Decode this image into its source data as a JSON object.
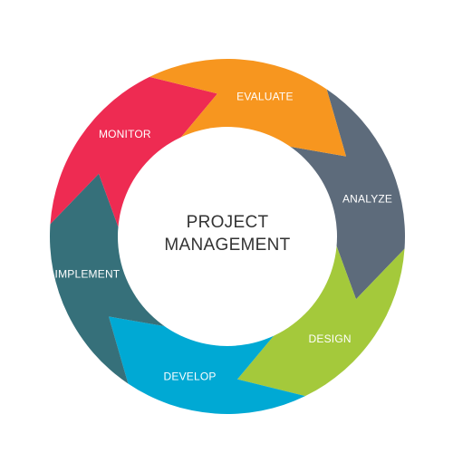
{
  "diagram": {
    "center_lines": [
      "PROJECT",
      "MANAGEMENT"
    ],
    "segments": [
      {
        "label": "ANALYZE",
        "color": "#5d6b7b"
      },
      {
        "label": "DESIGN",
        "color": "#a4c93b"
      },
      {
        "label": "DEVELOP",
        "color": "#00a9d4"
      },
      {
        "label": "IMPLEMENT",
        "color": "#36707a"
      },
      {
        "label": "MONITOR",
        "color": "#ee2b52"
      },
      {
        "label": "EVALUATE",
        "color": "#f7961f"
      }
    ]
  }
}
